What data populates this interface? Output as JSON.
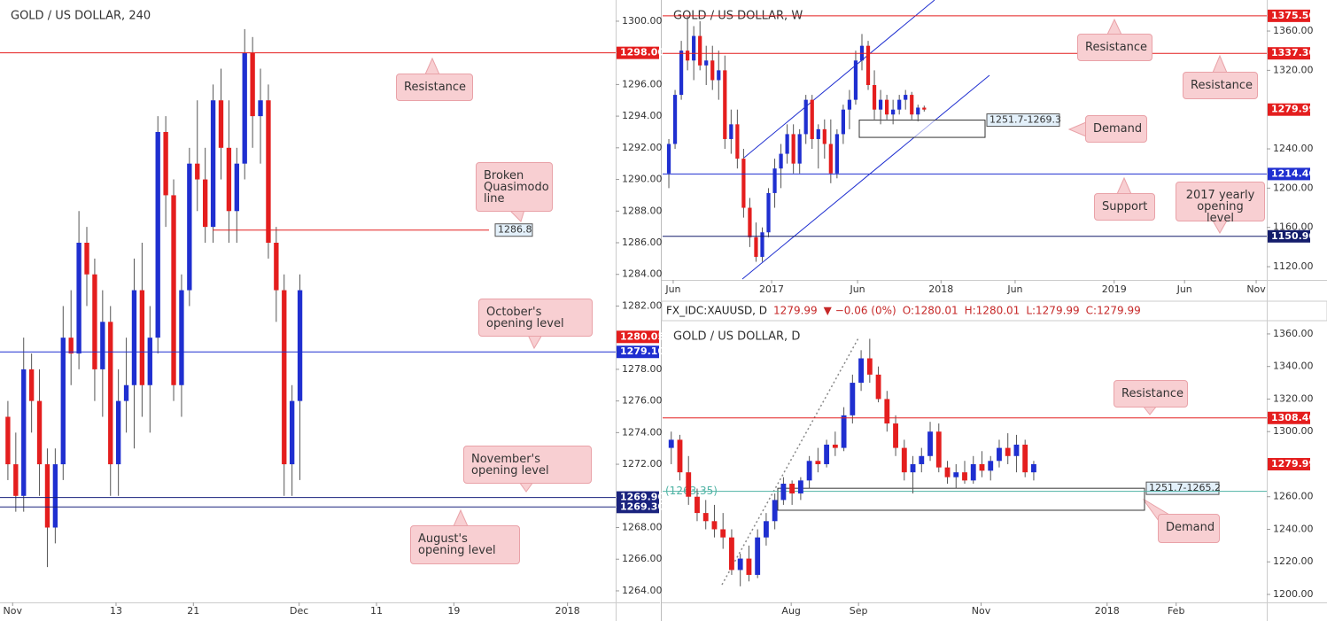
{
  "chart_data": [
    {
      "type": "candlestick",
      "title": "GOLD / US DOLLAR, 240",
      "up_color": "#1f2fd0",
      "down_color": "#e41e1e",
      "xlim": [
        -1,
        77
      ],
      "xticks": [
        {
          "value": 0.6,
          "label": "Nov"
        },
        {
          "value": 13.7,
          "label": "13"
        },
        {
          "value": 23.5,
          "label": "21"
        },
        {
          "value": 36.9,
          "label": "Dec"
        },
        {
          "value": 46.7,
          "label": "11"
        },
        {
          "value": 56.5,
          "label": "19"
        },
        {
          "value": 70.9,
          "label": "2018"
        }
      ],
      "ylim": [
        1263.27,
        1301.06
      ],
      "yticks": [
        {
          "value": 1264,
          "label": "1264.00"
        },
        {
          "value": 1266,
          "label": "1266.00"
        },
        {
          "value": 1268,
          "label": "1268.00"
        },
        {
          "value": 1272,
          "label": "1272.00"
        },
        {
          "value": 1274,
          "label": "1274.00"
        },
        {
          "value": 1276,
          "label": "1276.00"
        },
        {
          "value": 1278,
          "label": "1278.00"
        },
        {
          "value": 1282,
          "label": "1282.00"
        },
        {
          "value": 1284,
          "label": "1284.00"
        },
        {
          "value": 1286,
          "label": "1286.00"
        },
        {
          "value": 1288,
          "label": "1288.00"
        },
        {
          "value": 1290,
          "label": "1290.00"
        },
        {
          "value": 1292,
          "label": "1292.00"
        },
        {
          "value": 1294,
          "label": "1294.00"
        },
        {
          "value": 1296,
          "label": "1296.00"
        },
        {
          "value": 1300,
          "label": "1300.00"
        }
      ],
      "candles": [
        [
          1275,
          1276,
          1271,
          1272
        ],
        [
          1272,
          1274,
          1269,
          1270
        ],
        [
          1270,
          1280,
          1269,
          1278
        ],
        [
          1278,
          1279,
          1274,
          1276
        ],
        [
          1276,
          1278,
          1270,
          1272
        ],
        [
          1272,
          1273,
          1265.5,
          1268
        ],
        [
          1268,
          1273,
          1267,
          1272
        ],
        [
          1272,
          1282,
          1271,
          1280
        ],
        [
          1280,
          1283,
          1277,
          1279
        ],
        [
          1279,
          1288,
          1278,
          1286
        ],
        [
          1286,
          1287,
          1282,
          1284
        ],
        [
          1284,
          1285,
          1276,
          1278
        ],
        [
          1278,
          1283,
          1275,
          1281
        ],
        [
          1281,
          1282,
          1270,
          1272
        ],
        [
          1272,
          1278,
          1270,
          1276
        ],
        [
          1276,
          1280,
          1274,
          1277
        ],
        [
          1277,
          1285,
          1273,
          1283
        ],
        [
          1283,
          1286,
          1275,
          1277
        ],
        [
          1277,
          1282,
          1274,
          1280
        ],
        [
          1280,
          1294,
          1279,
          1293
        ],
        [
          1293,
          1294,
          1287,
          1289
        ],
        [
          1289,
          1290,
          1276,
          1277
        ],
        [
          1277,
          1284,
          1275,
          1283
        ],
        [
          1283,
          1292,
          1282,
          1291
        ],
        [
          1291,
          1295,
          1288,
          1290
        ],
        [
          1290,
          1292,
          1286,
          1287
        ],
        [
          1287,
          1296,
          1286,
          1295
        ],
        [
          1295,
          1297,
          1290,
          1292
        ],
        [
          1292,
          1295,
          1286,
          1288
        ],
        [
          1288,
          1292,
          1286,
          1291
        ],
        [
          1291,
          1299.5,
          1290,
          1298
        ],
        [
          1298,
          1299,
          1292,
          1294
        ],
        [
          1294,
          1297,
          1291,
          1295
        ],
        [
          1295,
          1296,
          1285,
          1286
        ],
        [
          1286,
          1287,
          1281,
          1283
        ],
        [
          1283,
          1284,
          1270,
          1272
        ],
        [
          1272,
          1277,
          1270,
          1276
        ],
        [
          1276,
          1284,
          1271,
          1283
        ]
      ],
      "levels": [
        {
          "value": 1298,
          "label": "1298.00",
          "color": "#e41e1e"
        },
        {
          "value": 1279.1,
          "label": "1279.10",
          "color": "#1f2fd0"
        },
        {
          "value": 1269.9,
          "label": "1269.90",
          "color": "#1a237e"
        },
        {
          "value": 1269.3,
          "label": "1269.30",
          "color": "#1a237e"
        }
      ],
      "price_tag": {
        "value": 1280.05,
        "label": "1280.05",
        "color": "#e41e1e"
      },
      "marked_level": {
        "value": 1286.8,
        "label": "1286.8",
        "color": "#e41e1e"
      },
      "annotations": [
        "Resistance",
        "Broken Quasimodo line",
        "October's opening level",
        "November's opening level",
        "August's opening level"
      ]
    },
    {
      "type": "candlestick",
      "title": "GOLD / US DOLLAR, W",
      "up_color": "#1f2fd0",
      "down_color": "#e41e1e",
      "xlim": [
        -1,
        96
      ],
      "xticks": [
        {
          "value": 0.7,
          "label": "Jun"
        },
        {
          "value": 16.5,
          "label": "2017"
        },
        {
          "value": 30.3,
          "label": "Jun"
        },
        {
          "value": 43.7,
          "label": "2018"
        },
        {
          "value": 55.6,
          "label": "Jun"
        },
        {
          "value": 71.5,
          "label": "2019"
        },
        {
          "value": 82.8,
          "label": "Jun"
        },
        {
          "value": 94.3,
          "label": "Nov"
        }
      ],
      "ylim": [
        1106.5,
        1384.4
      ],
      "yticks": [
        {
          "value": 1120,
          "label": "1120.00"
        },
        {
          "value": 1160,
          "label": "1160.00"
        },
        {
          "value": 1200,
          "label": "1200.00"
        },
        {
          "value": 1240,
          "label": "1240.00"
        },
        {
          "value": 1320,
          "label": "1320.00"
        },
        {
          "value": 1360,
          "label": "1360.00"
        }
      ],
      "candles": [
        [
          1215,
          1250,
          1200,
          1245
        ],
        [
          1245,
          1300,
          1240,
          1295
        ],
        [
          1295,
          1350,
          1290,
          1340
        ],
        [
          1340,
          1375,
          1320,
          1330
        ],
        [
          1330,
          1365,
          1310,
          1355
        ],
        [
          1355,
          1370,
          1320,
          1325
        ],
        [
          1325,
          1345,
          1305,
          1330
        ],
        [
          1330,
          1345,
          1300,
          1310
        ],
        [
          1310,
          1340,
          1290,
          1320
        ],
        [
          1320,
          1335,
          1240,
          1250
        ],
        [
          1250,
          1280,
          1235,
          1265
        ],
        [
          1265,
          1280,
          1220,
          1230
        ],
        [
          1230,
          1240,
          1170,
          1180
        ],
        [
          1180,
          1190,
          1140,
          1150
        ],
        [
          1150,
          1165,
          1125,
          1130
        ],
        [
          1130,
          1160,
          1125,
          1155
        ],
        [
          1155,
          1200,
          1150,
          1195
        ],
        [
          1195,
          1230,
          1180,
          1220
        ],
        [
          1220,
          1245,
          1200,
          1235
        ],
        [
          1235,
          1265,
          1225,
          1255
        ],
        [
          1255,
          1265,
          1215,
          1225
        ],
        [
          1225,
          1260,
          1215,
          1255
        ],
        [
          1255,
          1295,
          1245,
          1290
        ],
        [
          1290,
          1295,
          1240,
          1250
        ],
        [
          1250,
          1265,
          1220,
          1260
        ],
        [
          1260,
          1270,
          1230,
          1245
        ],
        [
          1245,
          1270,
          1205,
          1215
        ],
        [
          1215,
          1260,
          1210,
          1255
        ],
        [
          1255,
          1285,
          1245,
          1280
        ],
        [
          1280,
          1300,
          1260,
          1290
        ],
        [
          1290,
          1340,
          1285,
          1330
        ],
        [
          1330,
          1357,
          1320,
          1345
        ],
        [
          1345,
          1350,
          1300,
          1305
        ],
        [
          1305,
          1320,
          1270,
          1280
        ],
        [
          1280,
          1300,
          1265,
          1290
        ],
        [
          1290,
          1295,
          1270,
          1275
        ],
        [
          1275,
          1290,
          1265,
          1280
        ],
        [
          1280,
          1295,
          1275,
          1290
        ],
        [
          1290,
          1300,
          1280,
          1295
        ],
        [
          1295,
          1298,
          1270,
          1275
        ],
        [
          1275,
          1285,
          1268,
          1282
        ],
        [
          1282,
          1284,
          1278,
          1280
        ]
      ],
      "levels": [
        {
          "value": 1375.5,
          "label": "1375.50",
          "color": "#e41e1e"
        },
        {
          "value": 1337.3,
          "label": "1337.30",
          "color": "#e41e1e"
        },
        {
          "value": 1214.4,
          "label": "1214.40",
          "color": "#1f2fd0"
        },
        {
          "value": 1150.9,
          "label": "1150.90",
          "color": "#131c6b"
        }
      ],
      "price_tag": {
        "value": 1279.99,
        "label": "1279.99",
        "color": "#e41e1e"
      },
      "zone": {
        "values": [
          1251.7,
          1269.3
        ],
        "label": "1251.7-1269.3"
      },
      "annotations": [
        "Resistance",
        "Resistance",
        "Demand",
        "Support",
        "2017 yearly opening level"
      ]
    },
    {
      "type": "candlestick",
      "title": "GOLD / US DOLLAR, D",
      "up_color": "#1f2fd0",
      "down_color": "#e41e1e",
      "info": [
        "FX_IDC:XAUUSD, D",
        "1279.99",
        "▼ −0.06 (0%)",
        "O:1280.01",
        "H:1280.01",
        "L:1279.99",
        "C:1279.99"
      ],
      "xlim": [
        -1,
        69
      ],
      "xticks": [
        {
          "value": 13.9,
          "label": "Aug"
        },
        {
          "value": 21.7,
          "label": "Sep"
        },
        {
          "value": 35.9,
          "label": "Nov"
        },
        {
          "value": 50.5,
          "label": "2018"
        },
        {
          "value": 58.5,
          "label": "Feb"
        }
      ],
      "ylim": [
        1195.1,
        1366.5
      ],
      "yticks": [
        {
          "value": 1200,
          "label": "1200.00"
        },
        {
          "value": 1220,
          "label": "1220.00"
        },
        {
          "value": 1240,
          "label": "1240.00"
        },
        {
          "value": 1260,
          "label": "1260.00"
        },
        {
          "value": 1300,
          "label": "1300.00"
        },
        {
          "value": 1320,
          "label": "1320.00"
        },
        {
          "value": 1340,
          "label": "1340.00"
        },
        {
          "value": 1360,
          "label": "1360.00"
        }
      ],
      "candles": [
        [
          1290,
          1300,
          1280,
          1295
        ],
        [
          1295,
          1298,
          1270,
          1275
        ],
        [
          1275,
          1285,
          1255,
          1260
        ],
        [
          1260,
          1265,
          1245,
          1250
        ],
        [
          1250,
          1258,
          1240,
          1245
        ],
        [
          1245,
          1255,
          1235,
          1240
        ],
        [
          1240,
          1250,
          1228,
          1235
        ],
        [
          1235,
          1240,
          1212,
          1215
        ],
        [
          1215,
          1225,
          1205,
          1222
        ],
        [
          1222,
          1230,
          1208,
          1212
        ],
        [
          1212,
          1240,
          1210,
          1235
        ],
        [
          1235,
          1250,
          1230,
          1245
        ],
        [
          1245,
          1262,
          1240,
          1258
        ],
        [
          1258,
          1272,
          1255,
          1268
        ],
        [
          1268,
          1270,
          1255,
          1262
        ],
        [
          1262,
          1272,
          1258,
          1270
        ],
        [
          1270,
          1285,
          1265,
          1282
        ],
        [
          1282,
          1290,
          1275,
          1280
        ],
        [
          1280,
          1295,
          1278,
          1292
        ],
        [
          1292,
          1300,
          1285,
          1290
        ],
        [
          1290,
          1315,
          1288,
          1310
        ],
        [
          1310,
          1335,
          1305,
          1330
        ],
        [
          1330,
          1350,
          1325,
          1345
        ],
        [
          1345,
          1357,
          1330,
          1335
        ],
        [
          1335,
          1340,
          1318,
          1320
        ],
        [
          1320,
          1325,
          1300,
          1305
        ],
        [
          1305,
          1310,
          1285,
          1290
        ],
        [
          1290,
          1295,
          1270,
          1275
        ],
        [
          1275,
          1285,
          1262,
          1280
        ],
        [
          1280,
          1290,
          1275,
          1285
        ],
        [
          1285,
          1306,
          1282,
          1300
        ],
        [
          1300,
          1305,
          1275,
          1278
        ],
        [
          1278,
          1282,
          1268,
          1272
        ],
        [
          1272,
          1280,
          1265,
          1275
        ],
        [
          1275,
          1282,
          1268,
          1270
        ],
        [
          1270,
          1285,
          1268,
          1280
        ],
        [
          1280,
          1288,
          1272,
          1276
        ],
        [
          1276,
          1285,
          1270,
          1282
        ],
        [
          1282,
          1295,
          1278,
          1290
        ],
        [
          1290,
          1299,
          1280,
          1285
        ],
        [
          1285,
          1298,
          1275,
          1292
        ],
        [
          1292,
          1295,
          1272,
          1275
        ],
        [
          1275,
          1282,
          1270,
          1280
        ]
      ],
      "levels": [
        {
          "value": 1308.4,
          "label": "1308.40",
          "color": "#e41e1e"
        }
      ],
      "price_tag": {
        "value": 1279.99,
        "label": "1279.99",
        "color": "#e41e1e"
      },
      "ref_line": {
        "value": 1263.35,
        "label": "(1263.35)",
        "color": "#4fb3a4"
      },
      "zone": {
        "values": [
          1251.7,
          1265.2
        ],
        "label": "1251.7-1265.2"
      },
      "annotations": [
        "Resistance",
        "Demand"
      ]
    }
  ]
}
